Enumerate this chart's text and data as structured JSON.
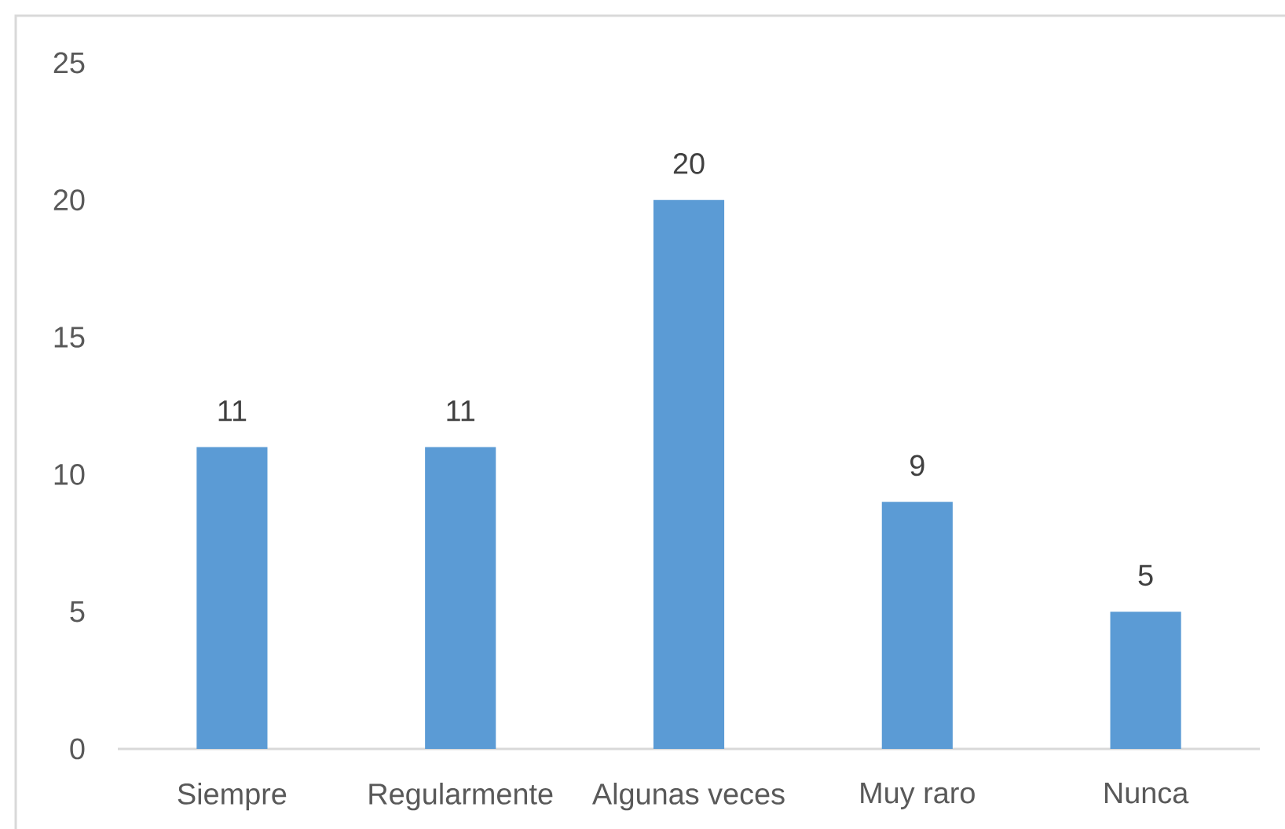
{
  "chart_data": {
    "type": "bar",
    "categories": [
      "Siempre",
      "Regularmente",
      "Algunas veces",
      "Muy raro",
      "Nunca"
    ],
    "values": [
      11,
      11,
      20,
      9,
      5
    ],
    "color": "#5b9bd5",
    "ylim": [
      0,
      25
    ],
    "yticks": [
      0,
      5,
      10,
      15,
      20,
      25
    ],
    "data_labels": true
  }
}
